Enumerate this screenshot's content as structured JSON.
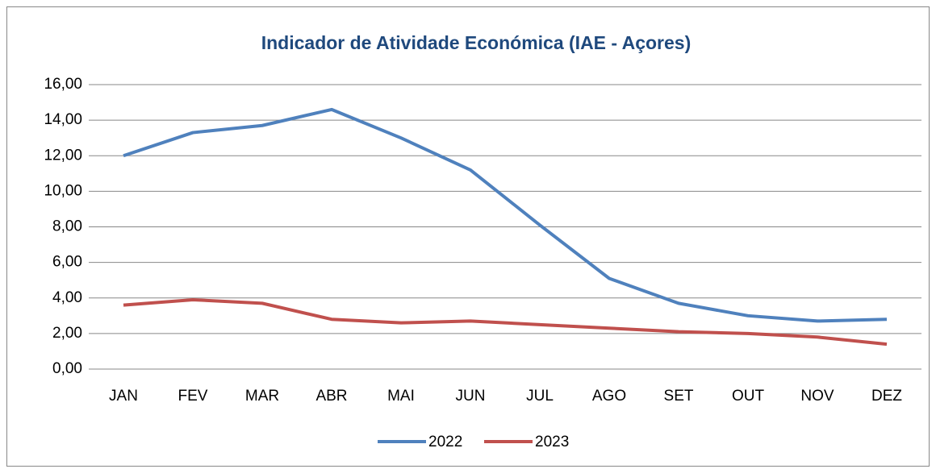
{
  "chart_data": {
    "type": "line",
    "title": "Indicador de Atividade Económica (IAE - Açores)",
    "categories": [
      "JAN",
      "FEV",
      "MAR",
      "ABR",
      "MAI",
      "JUN",
      "JUL",
      "AGO",
      "SET",
      "OUT",
      "NOV",
      "DEZ"
    ],
    "series": [
      {
        "name": "2022",
        "color": "#4f81bd",
        "values": [
          12.0,
          13.3,
          13.7,
          14.6,
          13.0,
          11.2,
          8.1,
          5.1,
          3.7,
          3.0,
          2.7,
          2.8
        ]
      },
      {
        "name": "2023",
        "color": "#c0504d",
        "values": [
          3.6,
          3.9,
          3.7,
          2.8,
          2.6,
          2.7,
          2.5,
          2.3,
          2.1,
          2.0,
          1.8,
          1.4
        ]
      }
    ],
    "ylim": [
      0,
      16
    ],
    "yticks": [
      {
        "value": 0,
        "label": "0,00"
      },
      {
        "value": 2,
        "label": "2,00"
      },
      {
        "value": 4,
        "label": "4,00"
      },
      {
        "value": 6,
        "label": "6,00"
      },
      {
        "value": 8,
        "label": "8,00"
      },
      {
        "value": 10,
        "label": "10,00"
      },
      {
        "value": 12,
        "label": "12,00"
      },
      {
        "value": 14,
        "label": "14,00"
      },
      {
        "value": 16,
        "label": "16,00"
      }
    ],
    "grid": true,
    "legend": "bottom"
  }
}
